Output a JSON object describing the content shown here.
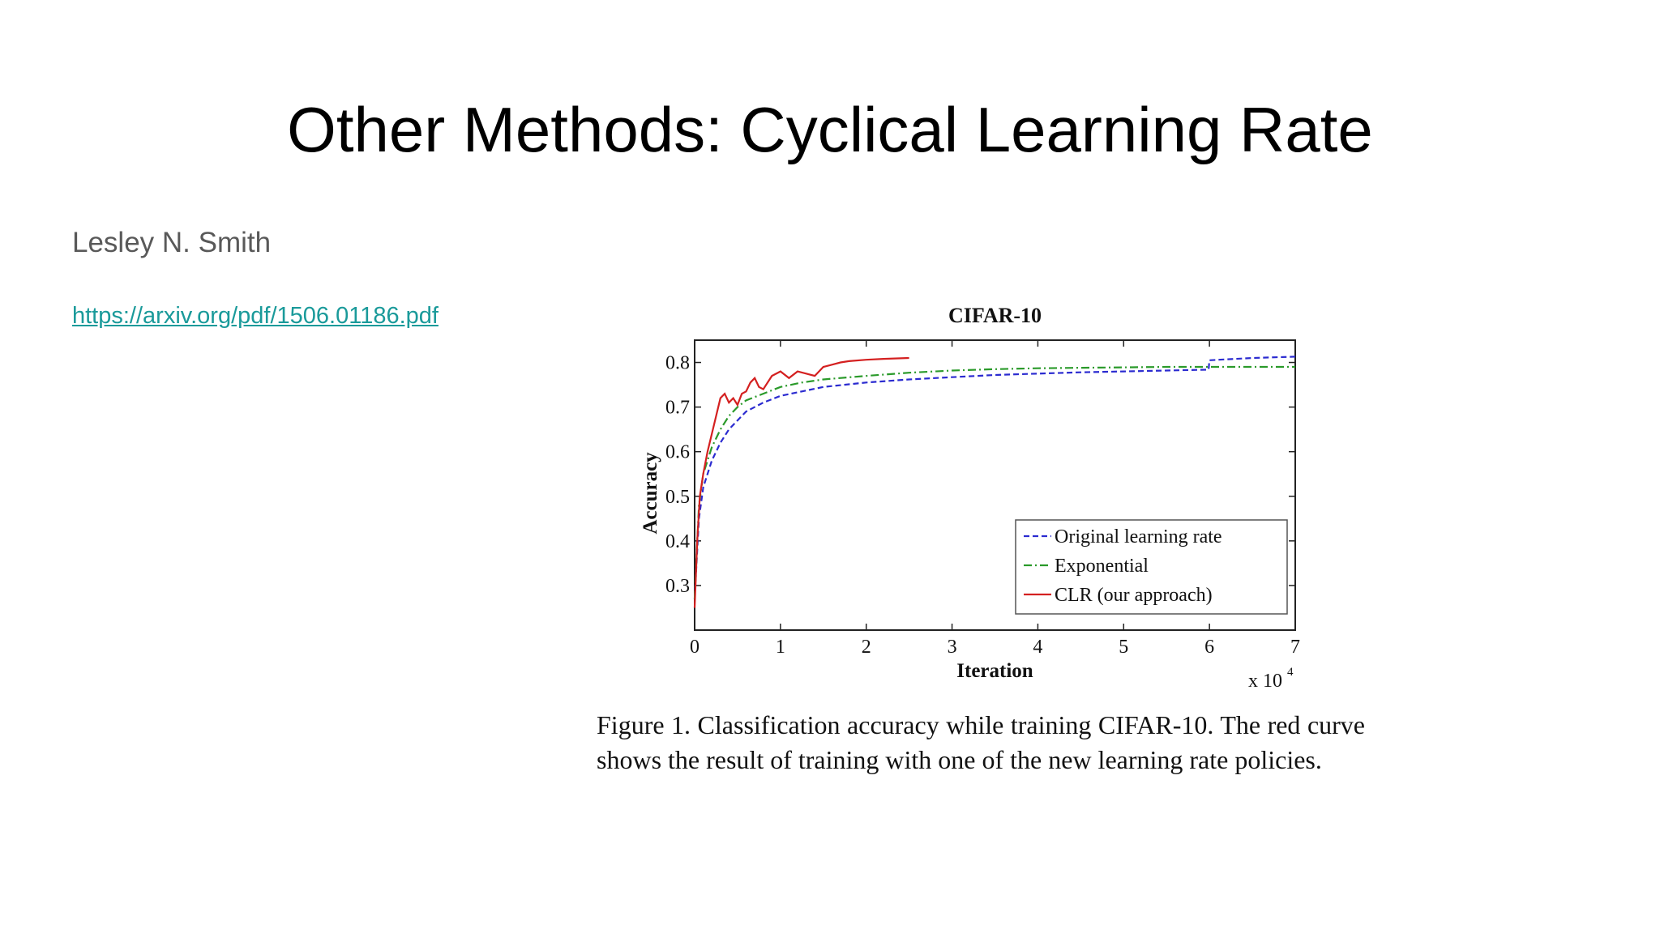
{
  "slide": {
    "title": "Other Methods: Cyclical Learning Rate",
    "author": "Lesley N. Smith",
    "link": "https://arxiv.org/pdf/1506.01186.pdf"
  },
  "caption": "Figure 1. Classification accuracy while training CIFAR-10. The red curve shows the result of training with one of the new learning rate policies.",
  "chart_data": {
    "type": "line",
    "title": "CIFAR-10",
    "xlabel": "Iteration",
    "ylabel": "Accuracy",
    "x_multiplier_label": "x 10",
    "x_multiplier_exponent": "4",
    "xlim": [
      0,
      7
    ],
    "ylim": [
      0.2,
      0.85
    ],
    "xticks": [
      "0",
      "1",
      "2",
      "3",
      "4",
      "5",
      "6",
      "7"
    ],
    "yticks": [
      "0.3",
      "0.4",
      "0.5",
      "0.6",
      "0.7",
      "0.8"
    ],
    "legend_position": "bottom-right",
    "grid": false,
    "series": [
      {
        "name": "Original learning rate",
        "color": "#2b2bd0",
        "style": "dashed",
        "x": [
          0,
          0.05,
          0.1,
          0.2,
          0.3,
          0.4,
          0.5,
          0.6,
          0.8,
          1.0,
          1.25,
          1.5,
          2.0,
          2.5,
          3.0,
          3.5,
          4.0,
          4.5,
          5.0,
          5.5,
          5.99,
          6.0,
          6.5,
          7.0
        ],
        "y": [
          0.27,
          0.45,
          0.52,
          0.58,
          0.62,
          0.65,
          0.67,
          0.69,
          0.71,
          0.725,
          0.735,
          0.745,
          0.755,
          0.762,
          0.767,
          0.772,
          0.775,
          0.778,
          0.78,
          0.782,
          0.784,
          0.805,
          0.81,
          0.813
        ]
      },
      {
        "name": "Exponential",
        "color": "#2a9a2a",
        "style": "dashdot",
        "x": [
          0,
          0.05,
          0.1,
          0.2,
          0.3,
          0.4,
          0.5,
          0.6,
          0.8,
          1.0,
          1.25,
          1.5,
          2.0,
          2.5,
          3.0,
          3.5,
          4.0,
          4.5,
          5.0,
          5.5,
          6.0,
          6.5,
          7.0
        ],
        "y": [
          0.27,
          0.48,
          0.55,
          0.61,
          0.65,
          0.68,
          0.7,
          0.715,
          0.73,
          0.745,
          0.755,
          0.762,
          0.77,
          0.777,
          0.782,
          0.785,
          0.787,
          0.788,
          0.789,
          0.79,
          0.79,
          0.79,
          0.79
        ]
      },
      {
        "name": "CLR (our approach)",
        "color": "#d42020",
        "style": "solid",
        "x": [
          0,
          0.03,
          0.06,
          0.1,
          0.15,
          0.2,
          0.25,
          0.3,
          0.35,
          0.4,
          0.45,
          0.5,
          0.55,
          0.6,
          0.65,
          0.7,
          0.75,
          0.8,
          0.9,
          1.0,
          1.1,
          1.2,
          1.3,
          1.4,
          1.5,
          1.6,
          1.7,
          1.8,
          2.0,
          2.2,
          2.5
        ],
        "y": [
          0.25,
          0.4,
          0.5,
          0.55,
          0.6,
          0.64,
          0.68,
          0.72,
          0.73,
          0.71,
          0.72,
          0.705,
          0.73,
          0.735,
          0.755,
          0.765,
          0.745,
          0.74,
          0.77,
          0.78,
          0.765,
          0.78,
          0.775,
          0.77,
          0.79,
          0.795,
          0.8,
          0.803,
          0.806,
          0.808,
          0.81
        ]
      }
    ]
  }
}
